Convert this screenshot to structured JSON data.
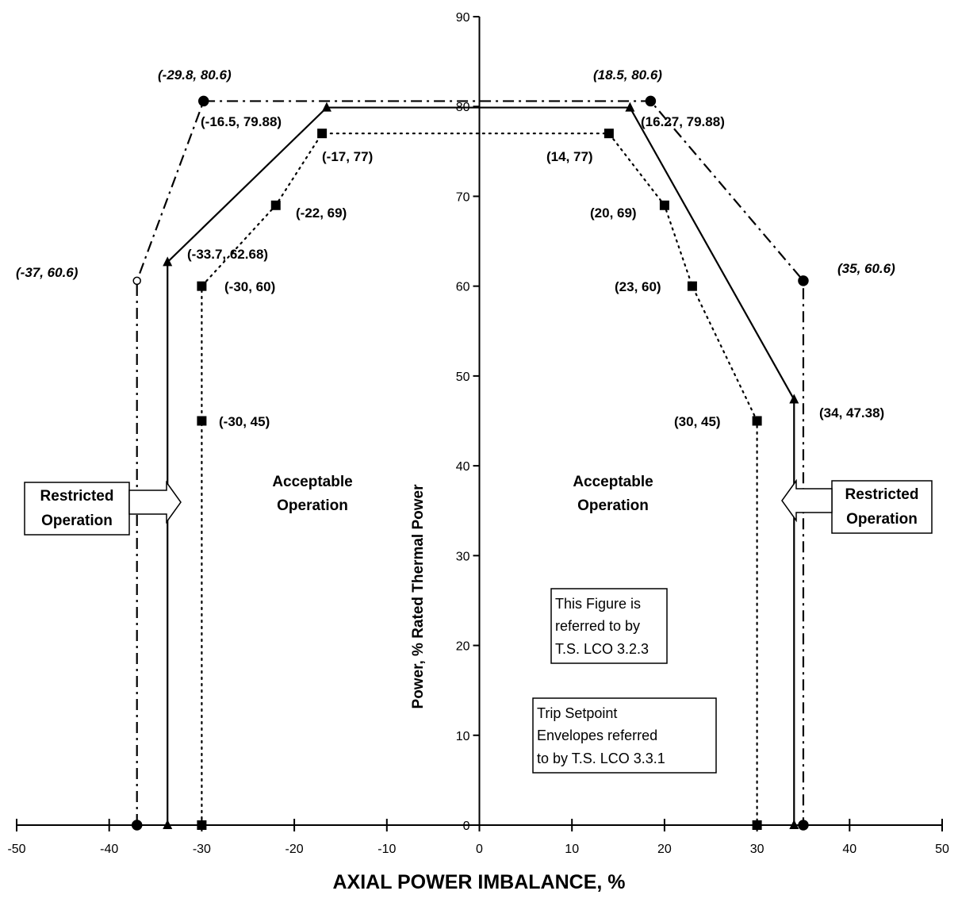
{
  "chart_data": {
    "type": "line",
    "xlabel": "AXIAL POWER IMBALANCE, %",
    "ylabel": "Power, % Rated Thermal Power",
    "xlim": [
      -50,
      50
    ],
    "ylim": [
      0,
      90
    ],
    "x_ticks": [
      -50,
      -40,
      -30,
      -20,
      -10,
      0,
      10,
      20,
      30,
      40,
      50
    ],
    "y_ticks": [
      0,
      10,
      20,
      30,
      40,
      50,
      60,
      70,
      80,
      90
    ],
    "series": [
      {
        "style": "dash-dot",
        "marker": "circle",
        "points": [
          [
            -37,
            0
          ],
          [
            -37,
            60.6
          ],
          [
            -29.8,
            80.6
          ],
          [
            18.5,
            80.6
          ],
          [
            35,
            60.6
          ],
          [
            35,
            0
          ]
        ]
      },
      {
        "style": "solid",
        "marker": "triangle",
        "points": [
          [
            -33.7,
            0
          ],
          [
            -33.7,
            62.68
          ],
          [
            -16.5,
            79.88
          ],
          [
            16.27,
            79.88
          ],
          [
            34,
            47.38
          ],
          [
            34,
            0
          ]
        ]
      },
      {
        "style": "dotted",
        "marker": "square",
        "points": [
          [
            -30,
            0
          ],
          [
            -30,
            45
          ],
          [
            -30,
            60
          ],
          [
            -22,
            69
          ],
          [
            -17,
            77
          ],
          [
            14,
            77
          ],
          [
            20,
            69
          ],
          [
            23,
            60
          ],
          [
            30,
            45
          ],
          [
            30,
            0
          ]
        ]
      }
    ],
    "point_labels": [
      {
        "text": "(-29.8, 80.6)",
        "italic": true
      },
      {
        "text": "(18.5, 80.6)",
        "italic": true
      },
      {
        "text": "(-16.5, 79.88)",
        "italic": false
      },
      {
        "text": "(16.27, 79.88)",
        "italic": false
      },
      {
        "text": "(-17, 77)",
        "italic": false
      },
      {
        "text": "(14, 77)",
        "italic": false
      },
      {
        "text": "(-22, 69)",
        "italic": false
      },
      {
        "text": "(20, 69)",
        "italic": false
      },
      {
        "text": "(-33.7, 62.68)",
        "italic": false
      },
      {
        "text": "(-37, 60.6)",
        "italic": true
      },
      {
        "text": "(35, 60.6)",
        "italic": true
      },
      {
        "text": "(-30, 60)",
        "italic": false
      },
      {
        "text": "(23, 60)",
        "italic": false
      },
      {
        "text": "(-30, 45)",
        "italic": false
      },
      {
        "text": "(30, 45)",
        "italic": false
      },
      {
        "text": "(34, 47.38)",
        "italic": false
      }
    ],
    "annotations": {
      "acceptable_left": [
        "Acceptable",
        "Operation"
      ],
      "acceptable_right": [
        "Acceptable",
        "Operation"
      ],
      "restricted_left": [
        "Restricted",
        "Operation"
      ],
      "restricted_right": [
        "Restricted",
        "Operation"
      ],
      "note_lco_323": [
        "This Figure is",
        "referred to by",
        "T.S. LCO 3.2.3"
      ],
      "note_lco_331": [
        "Trip Setpoint",
        "Envelopes referred",
        "to by T.S. LCO 3.3.1"
      ]
    }
  }
}
